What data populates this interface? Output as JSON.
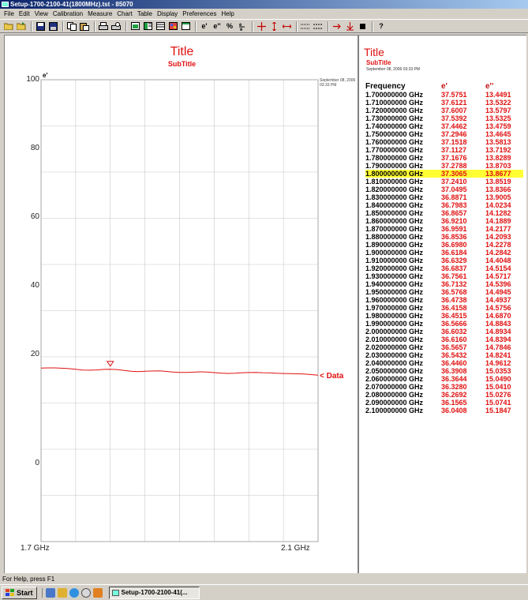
{
  "window": {
    "title": "Setup-1700-2100-41(1800MHz).tst - 85070"
  },
  "menu": [
    "File",
    "Edit",
    "View",
    "Calibration",
    "Measure",
    "Chart",
    "Table",
    "Display",
    "Preferences",
    "Help"
  ],
  "toolbar": {
    "icons": [
      "open-folder-icon",
      "open-folder-2-icon",
      "save-icon",
      "save-as-icon",
      "copy-icon",
      "paste-icon",
      "print-icon",
      "print-preview-icon",
      "chart-icon",
      "split-view-icon",
      "table-icon",
      "grid-icon",
      "window-icon"
    ],
    "eprime_label": "e'",
    "edoubleprime_label": "e''",
    "percent_label": "%",
    "help_label": "?"
  },
  "chart": {
    "title": "Title",
    "subtitle": "SubTitle",
    "timestamp_line1": "September 08, 2006",
    "timestamp_line2": "03:33 PM",
    "ylabel": "e'",
    "yticks": [
      "100",
      "80",
      "60",
      "40",
      "20",
      "0"
    ],
    "xticks": [
      "1.7 GHz",
      "2.1 GHz"
    ],
    "series_label": "< Data",
    "colors": {
      "trace": "#e01010",
      "grid": "#c8c8c8"
    }
  },
  "chart_data": {
    "type": "line",
    "title": "Title",
    "subtitle": "SubTitle",
    "ylabel": "e'",
    "xlabel": "",
    "ylim": [
      0,
      100
    ],
    "xlim": [
      1.7,
      2.1
    ],
    "grid": true,
    "marker_x": 1.8,
    "series": [
      {
        "name": "Data",
        "x": [
          1.7,
          1.71,
          1.72,
          1.73,
          1.74,
          1.75,
          1.76,
          1.77,
          1.78,
          1.79,
          1.8,
          1.81,
          1.82,
          1.83,
          1.84,
          1.85,
          1.86,
          1.87,
          1.88,
          1.89,
          1.9,
          1.91,
          1.92,
          1.93,
          1.94,
          1.95,
          1.96,
          1.97,
          1.98,
          1.99,
          2.0,
          2.01,
          2.02,
          2.03,
          2.04,
          2.05,
          2.06,
          2.07,
          2.08,
          2.09,
          2.1
        ],
        "values": [
          37.5751,
          37.6121,
          37.6007,
          37.5392,
          37.4462,
          37.2946,
          37.1518,
          37.1127,
          37.1676,
          37.2788,
          37.3065,
          37.241,
          37.0495,
          36.8871,
          36.7983,
          36.8657,
          36.921,
          36.9591,
          36.8536,
          36.698,
          36.6184,
          36.6329,
          36.6837,
          36.7561,
          36.7132,
          36.5768,
          36.4738,
          36.4158,
          36.4515,
          36.5666,
          36.6032,
          36.616,
          36.5657,
          36.5432,
          36.446,
          36.3908,
          36.3644,
          36.328,
          36.2692,
          36.1565,
          36.0408
        ]
      }
    ]
  },
  "table": {
    "title": "Title",
    "subtitle": "SubTitle",
    "date": "September 08, 2006 03:33 PM",
    "headers": [
      "Frequency",
      "e'",
      "e''"
    ],
    "selected_index": 10,
    "rows": [
      [
        "1.700000000 GHz",
        "37.5751",
        "13.4491"
      ],
      [
        "1.710000000 GHz",
        "37.6121",
        "13.5322"
      ],
      [
        "1.720000000 GHz",
        "37.6007",
        "13.5797"
      ],
      [
        "1.730000000 GHz",
        "37.5392",
        "13.5325"
      ],
      [
        "1.740000000 GHz",
        "37.4462",
        "13.4759"
      ],
      [
        "1.750000000 GHz",
        "37.2946",
        "13.4645"
      ],
      [
        "1.760000000 GHz",
        "37.1518",
        "13.5813"
      ],
      [
        "1.770000000 GHz",
        "37.1127",
        "13.7192"
      ],
      [
        "1.780000000 GHz",
        "37.1676",
        "13.8289"
      ],
      [
        "1.790000000 GHz",
        "37.2788",
        "13.8703"
      ],
      [
        "1.800000000 GHz",
        "37.3065",
        "13.8677"
      ],
      [
        "1.810000000 GHz",
        "37.2410",
        "13.8519"
      ],
      [
        "1.820000000 GHz",
        "37.0495",
        "13.8366"
      ],
      [
        "1.830000000 GHz",
        "36.8871",
        "13.9005"
      ],
      [
        "1.840000000 GHz",
        "36.7983",
        "14.0234"
      ],
      [
        "1.850000000 GHz",
        "36.8657",
        "14.1282"
      ],
      [
        "1.860000000 GHz",
        "36.9210",
        "14.1889"
      ],
      [
        "1.870000000 GHz",
        "36.9591",
        "14.2177"
      ],
      [
        "1.880000000 GHz",
        "36.8536",
        "14.2093"
      ],
      [
        "1.890000000 GHz",
        "36.6980",
        "14.2278"
      ],
      [
        "1.900000000 GHz",
        "36.6184",
        "14.2842"
      ],
      [
        "1.910000000 GHz",
        "36.6329",
        "14.4048"
      ],
      [
        "1.920000000 GHz",
        "36.6837",
        "14.5154"
      ],
      [
        "1.930000000 GHz",
        "36.7561",
        "14.5717"
      ],
      [
        "1.940000000 GHz",
        "36.7132",
        "14.5396"
      ],
      [
        "1.950000000 GHz",
        "36.5768",
        "14.4945"
      ],
      [
        "1.960000000 GHz",
        "36.4738",
        "14.4937"
      ],
      [
        "1.970000000 GHz",
        "36.4158",
        "14.5756"
      ],
      [
        "1.980000000 GHz",
        "36.4515",
        "14.6870"
      ],
      [
        "1.990000000 GHz",
        "36.5666",
        "14.8843"
      ],
      [
        "2.000000000 GHz",
        "36.6032",
        "14.8934"
      ],
      [
        "2.010000000 GHz",
        "36.6160",
        "14.8394"
      ],
      [
        "2.020000000 GHz",
        "36.5657",
        "14.7846"
      ],
      [
        "2.030000000 GHz",
        "36.5432",
        "14.8241"
      ],
      [
        "2.040000000 GHz",
        "36.4460",
        "14.9612"
      ],
      [
        "2.050000000 GHz",
        "36.3908",
        "15.0353"
      ],
      [
        "2.060000000 GHz",
        "36.3644",
        "15.0490"
      ],
      [
        "2.070000000 GHz",
        "36.3280",
        "15.0410"
      ],
      [
        "2.080000000 GHz",
        "36.2692",
        "15.0276"
      ],
      [
        "2.090000000 GHz",
        "36.1565",
        "15.0741"
      ],
      [
        "2.100000000 GHz",
        "36.0408",
        "15.1847"
      ]
    ]
  },
  "statusbar": {
    "text": "For Help, press F1"
  },
  "taskbar": {
    "start_label": "Start",
    "quicklaunch": [
      "desktop-icon",
      "outlook-icon",
      "ie-icon",
      "search-icon",
      "media-icon"
    ],
    "task_label": "Setup-1700-2100-41(..."
  }
}
